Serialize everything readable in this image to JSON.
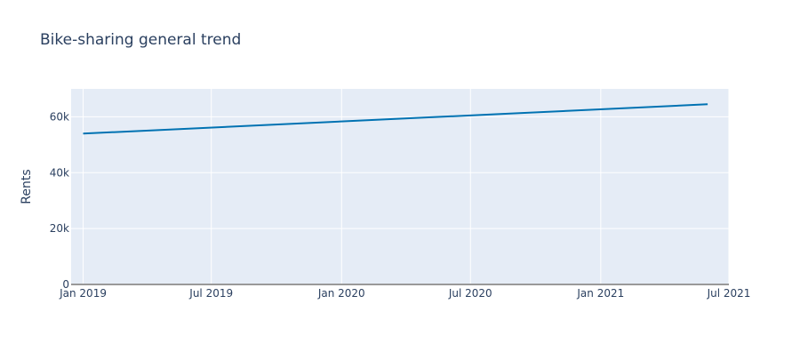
{
  "chart_data": {
    "type": "line",
    "title": "Bike-sharing general trend",
    "xlabel": "",
    "ylabel": "Rents",
    "x_tick_labels": [
      "Jan 2019",
      "Jul 2019",
      "Jan 2020",
      "Jul 2020",
      "Jan 2021",
      "Jul 2021"
    ],
    "y_tick_labels": [
      "0",
      "20k",
      "40k",
      "60k"
    ],
    "y_ticks": [
      0,
      20000,
      40000,
      60000
    ],
    "ylim": [
      0,
      70000
    ],
    "xlim": [
      "2018-12-15",
      "2021-07-01"
    ],
    "x_ticks": [
      "2019-01-01",
      "2019-07-01",
      "2020-01-01",
      "2020-07-01",
      "2021-01-01",
      "2021-07-01"
    ],
    "grid": true,
    "series": [
      {
        "color": "#0072b2",
        "x": [
          "2019-01-01",
          "2021-06-01"
        ],
        "y": [
          54000,
          64500
        ]
      }
    ],
    "colors": {
      "plot_bg": "#e5ecf6",
      "grid": "#ffffff",
      "text": "#2a3f5f",
      "zeroline": "#999999"
    }
  }
}
